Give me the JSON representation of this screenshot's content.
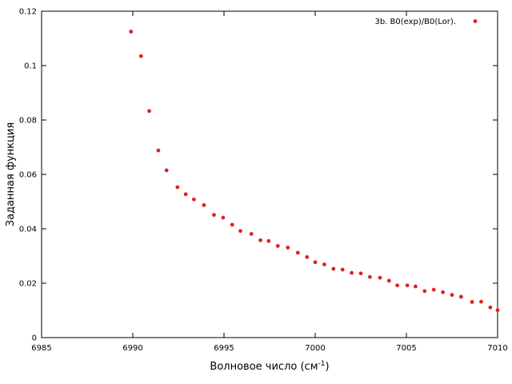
{
  "chart_data": {
    "type": "scatter",
    "xlabel": "Волновое число (см",
    "xlabel_sup": "-1",
    "xlabel_suffix": ")",
    "ylabel": "Заданная функция",
    "xlim": [
      6985,
      7010
    ],
    "ylim": [
      0,
      0.12
    ],
    "x_ticks": [
      "6985",
      "6990",
      "6995",
      "7000",
      "7005",
      "7010"
    ],
    "y_ticks": [
      "0",
      "0.02",
      "0.04",
      "0.06",
      "0.08",
      "0.1",
      "0.12"
    ],
    "grid": false,
    "legend_position": "top-right",
    "marker_color": "#dd2222",
    "series": [
      {
        "name": "3b. B0(exp)/B0(Lor).",
        "x": [
          6989.9,
          6990.45,
          6990.9,
          6991.4,
          6991.85,
          6992.45,
          6992.9,
          6993.35,
          6993.9,
          6994.45,
          6994.95,
          6995.45,
          6995.9,
          6996.5,
          6997.0,
          6997.45,
          6997.95,
          6998.5,
          6999.05,
          6999.55,
          7000.0,
          7000.5,
          7001.0,
          7001.5,
          7002.0,
          7002.5,
          7003.0,
          7003.55,
          7004.05,
          7004.5,
          7005.05,
          7005.5,
          7006.0,
          7006.5,
          7007.0,
          7007.5,
          7008.0,
          7008.6,
          7009.1,
          7009.6,
          7010.0
        ],
        "y": [
          0.1125,
          0.1035,
          0.0833,
          0.0688,
          0.0615,
          0.0553,
          0.0527,
          0.0508,
          0.0487,
          0.0451,
          0.0441,
          0.0415,
          0.0392,
          0.0381,
          0.0358,
          0.0355,
          0.0337,
          0.0331,
          0.0312,
          0.0296,
          0.0277,
          0.0269,
          0.0253,
          0.025,
          0.0238,
          0.0236,
          0.0223,
          0.022,
          0.0209,
          0.0192,
          0.0192,
          0.0188,
          0.0171,
          0.0176,
          0.0167,
          0.0157,
          0.015,
          0.0131,
          0.0132,
          0.0111,
          0.0101
        ]
      }
    ]
  }
}
